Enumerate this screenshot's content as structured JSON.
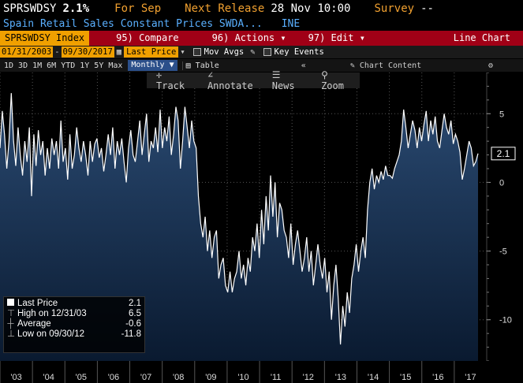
{
  "header": {
    "ticker": "SPRSWDSY",
    "last": "2.1%",
    "period": "For Sep",
    "next_release_label": "Next Release",
    "next_release": "28 Nov 10:00",
    "survey_label": "Survey",
    "survey": "--"
  },
  "subtitle": {
    "name": "Spain Retail Sales Constant Prices SWDA...",
    "source": "INE"
  },
  "menubar": {
    "security": "SPRSWDSY Index",
    "compare_num": "95)",
    "compare": "Compare",
    "actions_num": "96)",
    "actions": "Actions",
    "edit_num": "97)",
    "edit": "Edit",
    "chart_type": "Line Chart"
  },
  "options": {
    "start_date": "01/31/2003",
    "end_date": "09/30/2017",
    "field": "Last Price",
    "mov_avgs": "Mov Avgs",
    "key_events": "Key Events"
  },
  "periods": [
    "1D",
    "3D",
    "1M",
    "6M",
    "YTD",
    "1Y",
    "5Y",
    "Max"
  ],
  "frequency": "Monthly",
  "table_label": "Table",
  "chart_content_label": "Chart Content",
  "toolbar": {
    "track": "Track",
    "annotate": "Annotate",
    "news": "News",
    "zoom": "Zoom"
  },
  "legend": {
    "last_label": "Last Price",
    "last_val": "2.1",
    "high_label": "High on 12/31/03",
    "high_val": "6.5",
    "avg_label": "Average",
    "avg_val": "-0.6",
    "low_label": "Low on 09/30/12",
    "low_val": "-11.8"
  },
  "colors": {
    "orange": "#f0a000",
    "red_bar": "#a00016",
    "line": "#ffffff",
    "fill_top": "#2a4a72",
    "fill_bottom": "#0a1a30"
  },
  "chart_data": {
    "type": "area",
    "xlabels": [
      "'03",
      "'04",
      "'05",
      "'06",
      "'07",
      "'08",
      "'09",
      "'10",
      "'11",
      "'12",
      "'13",
      "'14",
      "'15",
      "'16",
      "'17"
    ],
    "ylim": [
      -13,
      8
    ],
    "yticks": [
      5,
      0,
      -5,
      -10
    ],
    "last_value_label": "2.1",
    "values": [
      2.5,
      5.2,
      3.5,
      1.0,
      3.0,
      6.5,
      3.0,
      1.2,
      4.0,
      2.0,
      0.5,
      3.0,
      1.5,
      4.0,
      -1.0,
      3.5,
      1.2,
      3.8,
      2.0,
      3.0,
      0.5,
      2.5,
      1.0,
      3.2,
      2.0,
      3.0,
      1.0,
      4.5,
      1.5,
      2.5,
      0.2,
      3.5,
      1.0,
      2.0,
      4.0,
      2.5,
      1.5,
      3.0,
      2.0,
      0.5,
      3.0,
      1.5,
      2.8,
      3.2,
      1.8,
      2.5,
      0.8,
      2.0,
      3.5,
      2.0,
      4.0,
      1.0,
      3.0,
      2.0,
      3.2,
      1.5,
      0.0,
      2.5,
      3.8,
      2.0,
      1.5,
      3.0,
      4.5,
      2.0,
      3.5,
      5.0,
      1.5,
      3.0,
      2.5,
      4.0,
      2.2,
      5.3,
      2.5,
      4.0,
      3.0,
      4.8,
      2.0,
      3.5,
      5.5,
      4.5,
      1.0,
      3.0,
      5.5,
      4.0,
      2.5,
      4.5,
      3.0,
      2.5,
      -1.0,
      -3.0,
      -4.0,
      -2.5,
      -5.0,
      -3.5,
      -5.5,
      -4.0,
      -3.5,
      -7.0,
      -6.0,
      -5.5,
      -7.5,
      -8.0,
      -6.5,
      -8.0,
      -7.0,
      -6.5,
      -5.0,
      -7.0,
      -6.0,
      -7.5,
      -5.5,
      -6.5,
      -4.0,
      -5.0,
      -3.0,
      -5.5,
      -2.0,
      -4.5,
      -1.0,
      -3.5,
      0.5,
      -2.5,
      0.0,
      -4.0,
      -1.5,
      -2.0,
      -3.5,
      -4.0,
      -5.5,
      -3.0,
      -6.0,
      -4.5,
      -3.5,
      -5.0,
      -6.5,
      -5.5,
      -4.0,
      -6.5,
      -5.0,
      -7.5,
      -6.0,
      -4.5,
      -6.0,
      -7.0,
      -5.5,
      -8.0,
      -6.5,
      -10.0,
      -7.5,
      -6.0,
      -8.5,
      -11.8,
      -9.0,
      -10.5,
      -8.0,
      -9.5,
      -7.0,
      -6.0,
      -4.5,
      -6.5,
      -5.0,
      -4.0,
      -5.5,
      -2.0,
      0.0,
      1.0,
      -0.5,
      0.5,
      0.0,
      0.8,
      0.2,
      1.2,
      0.5,
      0.5,
      0.3,
      1.0,
      1.5,
      2.0,
      3.0,
      5.3,
      4.0,
      2.5,
      3.5,
      4.5,
      3.8,
      2.5,
      4.0,
      3.0,
      4.2,
      5.2,
      3.0,
      4.5,
      3.5,
      4.8,
      3.0,
      2.5,
      3.8,
      5.0,
      4.0,
      3.5,
      4.5,
      2.8,
      3.5,
      3.0,
      2.2,
      0.2,
      1.0,
      2.0,
      3.0,
      2.5,
      1.2,
      1.5,
      2.1
    ]
  }
}
